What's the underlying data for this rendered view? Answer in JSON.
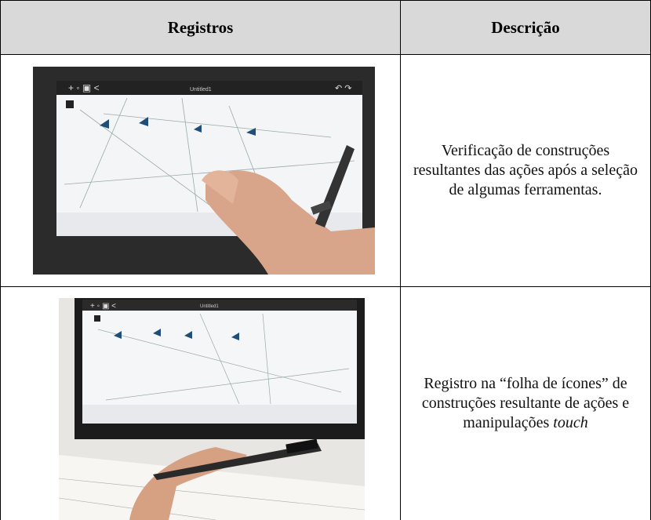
{
  "table": {
    "header": [
      "Registros",
      "Descrição"
    ],
    "rows": [
      {
        "image": {
          "screen_title": "Untitled1"
        },
        "description": {
          "text": "Verificação de construções resultantes das ações após a seleção de algumas ferramentas."
        }
      },
      {
        "image": {
          "screen_title": "Untitled1"
        },
        "description": {
          "text": "Registro na “folha de ícones” de construções resultante de ações e manipulações ",
          "italic": "touch"
        }
      }
    ]
  }
}
